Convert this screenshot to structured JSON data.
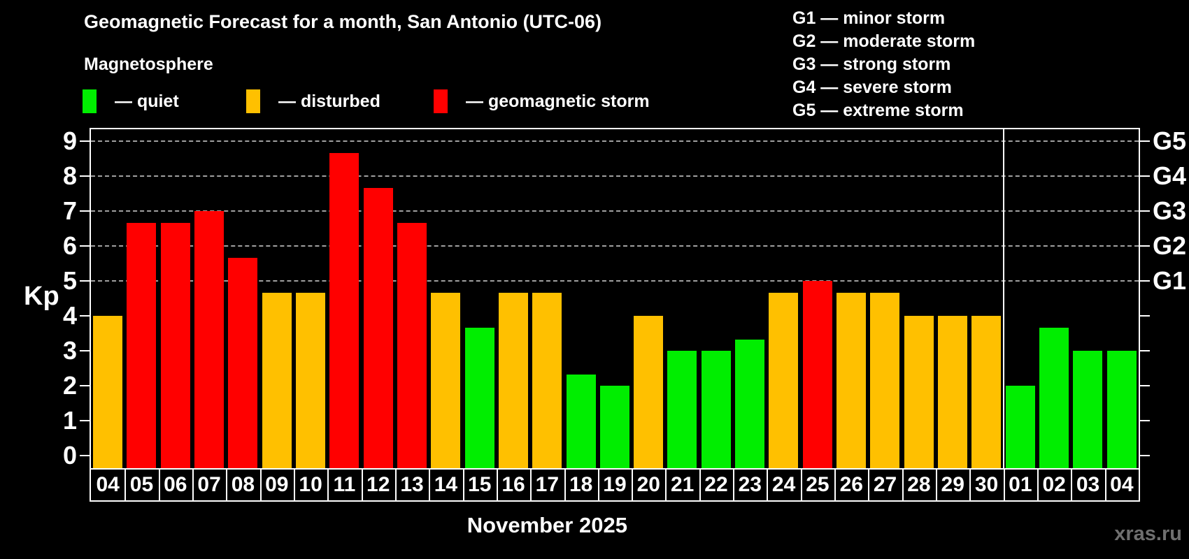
{
  "header": {
    "title": "Geomagnetic Forecast for a month, San Antonio (UTC-06)",
    "subtitle": "Magnetosphere"
  },
  "colors": {
    "quiet": "#00ee00",
    "disturbed": "#ffc000",
    "storm": "#ff0000",
    "background": "#000000",
    "text": "#ffffff",
    "grid": "#a0a0a0",
    "watermark": "#6f6f6f"
  },
  "legend": {
    "items": [
      {
        "label": "— quiet",
        "status": "quiet"
      },
      {
        "label": "— disturbed",
        "status": "disturbed"
      },
      {
        "label": "— geomagnetic storm",
        "status": "storm"
      }
    ]
  },
  "g_scale_legend": [
    "G1 — minor storm",
    "G2 — moderate storm",
    "G3 — strong storm",
    "G4 — severe storm",
    "G5 — extreme storm"
  ],
  "chart_data": {
    "type": "bar",
    "title": "Geomagnetic Forecast for a month, San Antonio (UTC-06)",
    "subtitle": "Magnetosphere",
    "ylabel": "Kp",
    "xlabel": "November 2025",
    "ylim": [
      0,
      9.4
    ],
    "yticks": [
      0,
      1,
      2,
      3,
      4,
      5,
      6,
      7,
      8,
      9
    ],
    "gridlines": [
      5,
      6,
      7,
      8,
      9
    ],
    "grid_style": "dashed, horizontal, only at G-storm levels",
    "right_axis": [
      {
        "kp": 5,
        "label": "G1"
      },
      {
        "kp": 6,
        "label": "G2"
      },
      {
        "kp": 7,
        "label": "G3"
      },
      {
        "kp": 8,
        "label": "G4"
      },
      {
        "kp": 9,
        "label": "G5"
      }
    ],
    "november_bar_count": 27,
    "bars": [
      {
        "date": "04",
        "kp": 4.0,
        "status": "disturbed"
      },
      {
        "date": "05",
        "kp": 6.67,
        "status": "storm"
      },
      {
        "date": "06",
        "kp": 6.67,
        "status": "storm"
      },
      {
        "date": "07",
        "kp": 7.0,
        "status": "storm"
      },
      {
        "date": "08",
        "kp": 5.67,
        "status": "storm"
      },
      {
        "date": "09",
        "kp": 4.67,
        "status": "disturbed"
      },
      {
        "date": "10",
        "kp": 4.67,
        "status": "disturbed"
      },
      {
        "date": "11",
        "kp": 8.67,
        "status": "storm"
      },
      {
        "date": "12",
        "kp": 7.67,
        "status": "storm"
      },
      {
        "date": "13",
        "kp": 6.67,
        "status": "storm"
      },
      {
        "date": "14",
        "kp": 4.67,
        "status": "disturbed"
      },
      {
        "date": "15",
        "kp": 3.67,
        "status": "quiet"
      },
      {
        "date": "16",
        "kp": 4.67,
        "status": "disturbed"
      },
      {
        "date": "17",
        "kp": 4.67,
        "status": "disturbed"
      },
      {
        "date": "18",
        "kp": 2.33,
        "status": "quiet"
      },
      {
        "date": "19",
        "kp": 2.0,
        "status": "quiet"
      },
      {
        "date": "20",
        "kp": 4.0,
        "status": "disturbed"
      },
      {
        "date": "21",
        "kp": 3.0,
        "status": "quiet"
      },
      {
        "date": "22",
        "kp": 3.0,
        "status": "quiet"
      },
      {
        "date": "23",
        "kp": 3.33,
        "status": "quiet"
      },
      {
        "date": "24",
        "kp": 4.67,
        "status": "disturbed"
      },
      {
        "date": "25",
        "kp": 5.0,
        "status": "storm"
      },
      {
        "date": "26",
        "kp": 4.67,
        "status": "disturbed"
      },
      {
        "date": "27",
        "kp": 4.67,
        "status": "disturbed"
      },
      {
        "date": "28",
        "kp": 4.0,
        "status": "disturbed"
      },
      {
        "date": "29",
        "kp": 4.0,
        "status": "disturbed"
      },
      {
        "date": "30",
        "kp": 4.0,
        "status": "disturbed"
      },
      {
        "date": "01",
        "kp": 2.0,
        "status": "quiet"
      },
      {
        "date": "02",
        "kp": 3.67,
        "status": "quiet"
      },
      {
        "date": "03",
        "kp": 3.0,
        "status": "quiet"
      },
      {
        "date": "04",
        "kp": 3.0,
        "status": "quiet"
      }
    ]
  },
  "axis": {
    "kp_label": "Kp",
    "month_label": "November 2025"
  },
  "watermark": "xras.ru"
}
